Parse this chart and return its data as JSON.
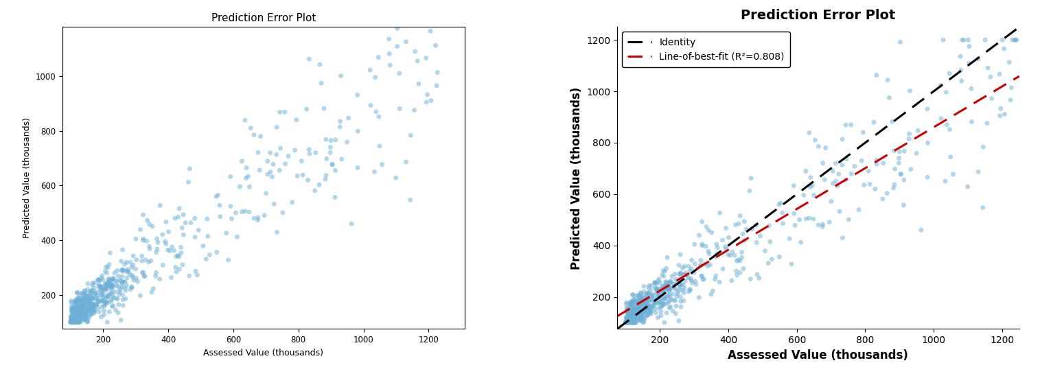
{
  "title": "Prediction Error Plot",
  "xlabel": "Assessed Value (thousands)",
  "ylabel": "Predicted Value (thousands)",
  "scatter_color": "#6baed6",
  "scatter_alpha": 0.5,
  "scatter_size": 25,
  "left_xticks": [
    200,
    400,
    600,
    800,
    1000,
    1200
  ],
  "left_yticks": [
    200,
    400,
    600,
    800,
    1000
  ],
  "right_xticks": [
    200,
    400,
    600,
    800,
    1000,
    1200
  ],
  "right_yticks": [
    200,
    400,
    600,
    800,
    1000,
    1200
  ],
  "identity_color": "#000000",
  "bestfit_color": "#cc0000",
  "bestfit_slope": 0.795,
  "bestfit_intercept": 65,
  "r2": 0.808,
  "seed": 12345
}
